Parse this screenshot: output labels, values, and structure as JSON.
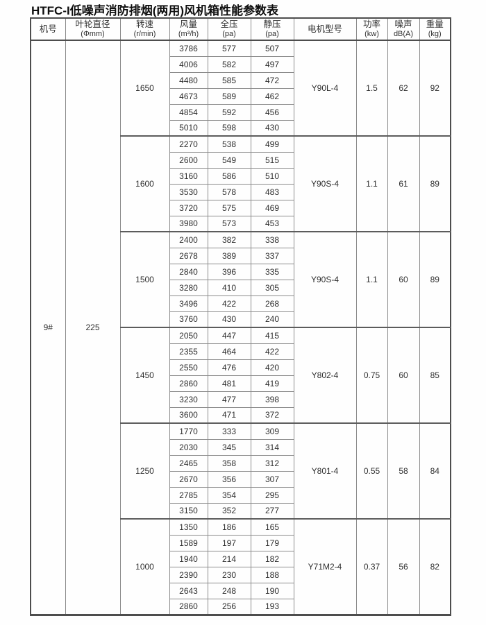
{
  "page": {
    "title": "HTFC-I低噪声消防排烟(两用)风机箱性能参数表"
  },
  "colors": {
    "background": "#fefefe",
    "text": "#2f2f2f",
    "border_heavy": "#4d4d4d",
    "border_light": "#8a8a8a"
  },
  "table": {
    "columns": [
      {
        "label": "机号",
        "unit": ""
      },
      {
        "label": "叶轮直径",
        "unit": "(Φmm)"
      },
      {
        "label": "转速",
        "unit": "(r/min)"
      },
      {
        "label": "风量",
        "unit": "(m³/h)"
      },
      {
        "label": "全压",
        "unit": "(pa)"
      },
      {
        "label": "静压",
        "unit": "(pa)"
      },
      {
        "label": "电机型号",
        "unit": ""
      },
      {
        "label": "功率",
        "unit": "(kw)"
      },
      {
        "label": "噪声",
        "unit": "dB(A)"
      },
      {
        "label": "重量",
        "unit": "(kg)"
      }
    ],
    "machine_no": "9#",
    "impeller_diameter": "225",
    "groups": [
      {
        "speed": "1650",
        "motor_model": "Y90L-4",
        "power": "1.5",
        "noise": "62",
        "weight": "92",
        "rows": [
          [
            "3786",
            "577",
            "507"
          ],
          [
            "4006",
            "582",
            "497"
          ],
          [
            "4480",
            "585",
            "472"
          ],
          [
            "4673",
            "589",
            "462"
          ],
          [
            "4854",
            "592",
            "456"
          ],
          [
            "5010",
            "598",
            "430"
          ]
        ]
      },
      {
        "speed": "1600",
        "motor_model": "Y90S-4",
        "power": "1.1",
        "noise": "61",
        "weight": "89",
        "rows": [
          [
            "2270",
            "538",
            "499"
          ],
          [
            "2600",
            "549",
            "515"
          ],
          [
            "3160",
            "586",
            "510"
          ],
          [
            "3530",
            "578",
            "483"
          ],
          [
            "3720",
            "575",
            "469"
          ],
          [
            "3980",
            "573",
            "453"
          ]
        ]
      },
      {
        "speed": "1500",
        "motor_model": "Y90S-4",
        "power": "1.1",
        "noise": "60",
        "weight": "89",
        "rows": [
          [
            "2400",
            "382",
            "338"
          ],
          [
            "2678",
            "389",
            "337"
          ],
          [
            "2840",
            "396",
            "335"
          ],
          [
            "3280",
            "410",
            "305"
          ],
          [
            "3496",
            "422",
            "268"
          ],
          [
            "3760",
            "430",
            "240"
          ]
        ]
      },
      {
        "speed": "1450",
        "motor_model": "Y802-4",
        "power": "0.75",
        "noise": "60",
        "weight": "85",
        "rows": [
          [
            "2050",
            "447",
            "415"
          ],
          [
            "2355",
            "464",
            "422"
          ],
          [
            "2550",
            "476",
            "420"
          ],
          [
            "2860",
            "481",
            "419"
          ],
          [
            "3230",
            "477",
            "398"
          ],
          [
            "3600",
            "471",
            "372"
          ]
        ]
      },
      {
        "speed": "1250",
        "motor_model": "Y801-4",
        "power": "0.55",
        "noise": "58",
        "weight": "84",
        "rows": [
          [
            "1770",
            "333",
            "309"
          ],
          [
            "2030",
            "345",
            "314"
          ],
          [
            "2465",
            "358",
            "312"
          ],
          [
            "2670",
            "356",
            "307"
          ],
          [
            "2785",
            "354",
            "295"
          ],
          [
            "3150",
            "352",
            "277"
          ]
        ]
      },
      {
        "speed": "1000",
        "motor_model": "Y71M2-4",
        "power": "0.37",
        "noise": "56",
        "weight": "82",
        "rows": [
          [
            "1350",
            "186",
            "165"
          ],
          [
            "1589",
            "197",
            "179"
          ],
          [
            "1940",
            "214",
            "182"
          ],
          [
            "2390",
            "230",
            "188"
          ],
          [
            "2643",
            "248",
            "190"
          ],
          [
            "2860",
            "256",
            "193"
          ]
        ]
      }
    ]
  }
}
